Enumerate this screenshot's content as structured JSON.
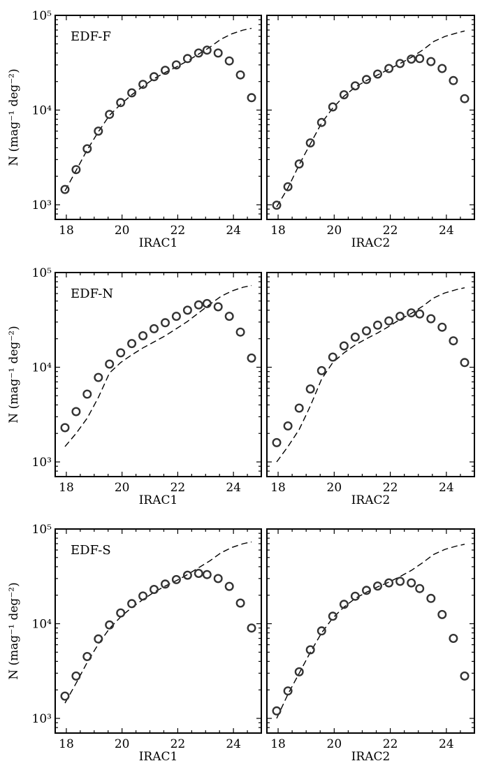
{
  "figure": {
    "ylabel_main": "N",
    "ylabel_units": "(mag⁻¹ deg⁻²)"
  },
  "chart_data": [
    {
      "type": "scatter",
      "field": "EDF-F",
      "band": "IRAC1",
      "xlabel": "IRAC1",
      "xlim": [
        17.6,
        25.0
      ],
      "ylim": [
        700,
        100000
      ],
      "yscale": "log",
      "xticks": [
        "18",
        "20",
        "22",
        "24"
      ],
      "yticks": [
        "10³",
        "10⁴",
        "10⁵"
      ],
      "observed": {
        "x": [
          17.95,
          18.35,
          18.75,
          19.15,
          19.55,
          19.95,
          20.35,
          20.75,
          21.15,
          21.55,
          21.95,
          22.35,
          22.75,
          23.05,
          23.45,
          23.85,
          24.25,
          24.65
        ],
        "y": [
          1450,
          2350,
          3900,
          6000,
          9000,
          12000,
          15200,
          18700,
          22500,
          26300,
          30000,
          35000,
          40000,
          43000,
          40000,
          33000,
          23500,
          13500
        ]
      },
      "model": {
        "x": [
          17.95,
          18.35,
          18.75,
          19.15,
          19.55,
          19.95,
          20.35,
          20.75,
          21.15,
          21.55,
          21.95,
          22.35,
          22.75,
          23.15,
          23.55,
          23.95,
          24.35,
          24.65
        ],
        "y": [
          1400,
          2300,
          3800,
          5900,
          8800,
          11500,
          14500,
          17800,
          21500,
          25000,
          28500,
          33000,
          39000,
          46000,
          56000,
          64000,
          70000,
          73000
        ]
      }
    },
    {
      "type": "scatter",
      "field": "",
      "band": "IRAC2",
      "xlabel": "IRAC2",
      "xlim": [
        17.6,
        25.0
      ],
      "ylim": [
        700,
        100000
      ],
      "yscale": "log",
      "xticks": [
        "18",
        "20",
        "22",
        "24"
      ],
      "yticks": [],
      "observed": {
        "x": [
          17.95,
          18.35,
          18.75,
          19.15,
          19.55,
          19.95,
          20.35,
          20.75,
          21.15,
          21.55,
          21.95,
          22.35,
          22.75,
          23.05,
          23.45,
          23.85,
          24.25,
          24.65
        ],
        "y": [
          990,
          1550,
          2700,
          4500,
          7400,
          10800,
          14500,
          18000,
          21000,
          24000,
          27500,
          31000,
          34500,
          35000,
          32500,
          27500,
          20500,
          13200
        ]
      },
      "model": {
        "x": [
          17.95,
          18.35,
          18.75,
          19.15,
          19.55,
          19.95,
          20.35,
          20.75,
          21.15,
          21.55,
          21.95,
          22.35,
          22.75,
          23.15,
          23.55,
          23.95,
          24.35,
          24.65
        ],
        "y": [
          950,
          1500,
          2650,
          4400,
          7300,
          10500,
          14000,
          17500,
          20500,
          23500,
          27000,
          31000,
          36000,
          43000,
          53000,
          60000,
          65000,
          68500
        ]
      }
    },
    {
      "type": "scatter",
      "field": "EDF-N",
      "band": "IRAC1",
      "xlabel": "IRAC1",
      "xlim": [
        17.6,
        25.0
      ],
      "ylim": [
        700,
        100000
      ],
      "yscale": "log",
      "xticks": [
        "18",
        "20",
        "22",
        "24"
      ],
      "yticks": [
        "10³",
        "10⁴",
        "10⁵"
      ],
      "observed": {
        "x": [
          17.95,
          18.35,
          18.75,
          19.15,
          19.55,
          19.95,
          20.35,
          20.75,
          21.15,
          21.55,
          21.95,
          22.35,
          22.75,
          23.05,
          23.45,
          23.85,
          24.25,
          24.65
        ],
        "y": [
          2300,
          3400,
          5200,
          7800,
          10800,
          14200,
          17800,
          21500,
          25500,
          29500,
          34500,
          40000,
          45500,
          47000,
          43500,
          34500,
          23500,
          12500
        ]
      },
      "model": {
        "x": [
          17.95,
          18.35,
          18.75,
          19.15,
          19.55,
          19.95,
          20.35,
          20.75,
          21.15,
          21.55,
          21.95,
          22.35,
          22.75,
          23.15,
          23.55,
          23.95,
          24.35,
          24.65
        ],
        "y": [
          1450,
          2000,
          2900,
          4800,
          8700,
          11200,
          13500,
          16000,
          18500,
          21500,
          25500,
          30500,
          37500,
          46000,
          56000,
          64000,
          70000,
          73000
        ]
      }
    },
    {
      "type": "scatter",
      "field": "",
      "band": "IRAC2",
      "xlabel": "IRAC2",
      "xlim": [
        17.6,
        25.0
      ],
      "ylim": [
        700,
        100000
      ],
      "yscale": "log",
      "xticks": [
        "18",
        "20",
        "22",
        "24"
      ],
      "yticks": [],
      "observed": {
        "x": [
          17.95,
          18.35,
          18.75,
          19.15,
          19.55,
          19.95,
          20.35,
          20.75,
          21.15,
          21.55,
          21.95,
          22.35,
          22.75,
          23.05,
          23.45,
          23.85,
          24.25,
          24.65
        ],
        "y": [
          1600,
          2400,
          3700,
          5900,
          9200,
          12800,
          16800,
          20800,
          24200,
          27800,
          30800,
          34500,
          37500,
          36500,
          32500,
          26500,
          19000,
          11200
        ]
      },
      "model": {
        "x": [
          17.95,
          18.35,
          18.75,
          19.15,
          19.55,
          19.95,
          20.35,
          20.75,
          21.15,
          21.55,
          21.95,
          22.35,
          22.75,
          23.15,
          23.55,
          23.95,
          24.35,
          24.65
        ],
        "y": [
          1000,
          1450,
          2200,
          3900,
          7500,
          11200,
          14200,
          17200,
          20000,
          23000,
          27000,
          32000,
          37000,
          44000,
          54000,
          61000,
          66000,
          69000
        ]
      }
    },
    {
      "type": "scatter",
      "field": "EDF-S",
      "band": "IRAC1",
      "xlabel": "IRAC1",
      "xlim": [
        17.6,
        25.0
      ],
      "ylim": [
        700,
        100000
      ],
      "yscale": "log",
      "xticks": [
        "18",
        "20",
        "22",
        "24"
      ],
      "yticks": [
        "10³",
        "10⁴",
        "10⁵"
      ],
      "observed": {
        "x": [
          17.95,
          18.35,
          18.75,
          19.15,
          19.55,
          19.95,
          20.35,
          20.75,
          21.15,
          21.55,
          21.95,
          22.35,
          22.75,
          23.05,
          23.45,
          23.85,
          24.25,
          24.65
        ],
        "y": [
          1720,
          2800,
          4500,
          6900,
          9700,
          13000,
          16300,
          19600,
          23000,
          26200,
          29200,
          32500,
          34000,
          33000,
          30000,
          24800,
          16500,
          9000
        ]
      },
      "model": {
        "x": [
          17.95,
          18.35,
          18.75,
          19.15,
          19.55,
          19.95,
          20.35,
          20.75,
          21.15,
          21.55,
          21.95,
          22.35,
          22.75,
          23.15,
          23.55,
          23.95,
          24.35,
          24.65
        ],
        "y": [
          1450,
          2350,
          3900,
          6100,
          8900,
          11800,
          14800,
          18000,
          21500,
          25000,
          28500,
          33000,
          39000,
          46000,
          56000,
          64000,
          70000,
          73000
        ]
      }
    },
    {
      "type": "scatter",
      "field": "",
      "band": "IRAC2",
      "xlabel": "IRAC2",
      "xlim": [
        17.6,
        25.0
      ],
      "ylim": [
        700,
        100000
      ],
      "yscale": "log",
      "xticks": [
        "18",
        "20",
        "22",
        "24"
      ],
      "yticks": [],
      "observed": {
        "x": [
          17.95,
          18.35,
          18.75,
          19.15,
          19.55,
          19.95,
          20.35,
          20.75,
          21.15,
          21.55,
          21.95,
          22.35,
          22.75,
          23.05,
          23.45,
          23.85,
          24.25,
          24.65
        ],
        "y": [
          1200,
          1950,
          3100,
          5300,
          8400,
          12000,
          16000,
          19500,
          22500,
          25000,
          27000,
          28000,
          27000,
          23500,
          18500,
          12500,
          7000,
          2800
        ]
      },
      "model": {
        "x": [
          17.95,
          18.35,
          18.75,
          19.15,
          19.55,
          19.95,
          20.35,
          20.75,
          21.15,
          21.55,
          21.95,
          22.35,
          22.75,
          23.15,
          23.55,
          23.95,
          24.35,
          24.65
        ],
        "y": [
          1000,
          1800,
          3000,
          5000,
          8000,
          11500,
          15000,
          18500,
          21500,
          24500,
          27500,
          31500,
          36500,
          44000,
          54000,
          61000,
          66000,
          69000
        ]
      }
    }
  ]
}
